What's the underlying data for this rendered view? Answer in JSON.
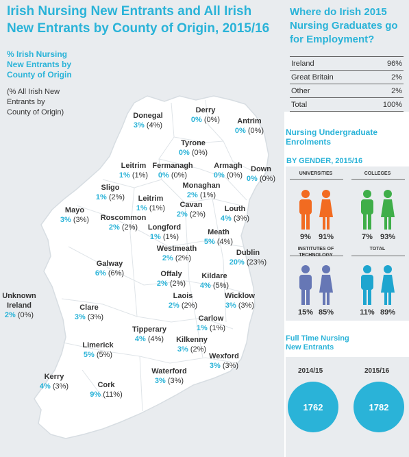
{
  "header": {
    "title": "Irish Nursing New Entrants and All Irish New Entrants by County of Origin, 2015/16",
    "subtitle": "% Irish Nursing\nNew Entrants by\nCounty of Origin",
    "note": "(% All Irish New\nEntrants by\nCounty of Origin)"
  },
  "counties": [
    {
      "name": "Donegal",
      "pct": "3%",
      "all": "(4%)"
    },
    {
      "name": "Derry",
      "pct": "0%",
      "all": "(0%)"
    },
    {
      "name": "Antrim",
      "pct": "0%",
      "all": "(0%)"
    },
    {
      "name": "Tyrone",
      "pct": "0%",
      "all": "(0%)"
    },
    {
      "name": "Leitrim",
      "pct": "1%",
      "all": "(1%)"
    },
    {
      "name": "Fermanagh",
      "pct": "0%",
      "all": "(0%)"
    },
    {
      "name": "Armagh",
      "pct": "0%",
      "all": "(0%)"
    },
    {
      "name": "Down",
      "pct": "0%",
      "all": "(0%)"
    },
    {
      "name": "Monaghan",
      "pct": "2%",
      "all": "(1%)"
    },
    {
      "name": "Sligo",
      "pct": "1%",
      "all": "(2%)"
    },
    {
      "name": "Leitrim",
      "pct": "1%",
      "all": "(1%)"
    },
    {
      "name": "Cavan",
      "pct": "2%",
      "all": "(2%)"
    },
    {
      "name": "Louth",
      "pct": "4%",
      "all": "(3%)"
    },
    {
      "name": "Mayo",
      "pct": "3%",
      "all": "(3%)"
    },
    {
      "name": "Roscommon",
      "pct": "2%",
      "all": "(2%)"
    },
    {
      "name": "Longford",
      "pct": "1%",
      "all": "(1%)"
    },
    {
      "name": "Meath",
      "pct": "5%",
      "all": "(4%)"
    },
    {
      "name": "Westmeath",
      "pct": "2%",
      "all": "(2%)"
    },
    {
      "name": "Dublin",
      "pct": "20%",
      "all": "(23%)"
    },
    {
      "name": "Galway",
      "pct": "6%",
      "all": "(6%)"
    },
    {
      "name": "Offaly",
      "pct": "2%",
      "all": "(2%)"
    },
    {
      "name": "Kildare",
      "pct": "4%",
      "all": "(5%)"
    },
    {
      "name": "Unknown\nIreland",
      "pct": "2%",
      "all": "(0%)"
    },
    {
      "name": "Clare",
      "pct": "3%",
      "all": "(3%)"
    },
    {
      "name": "Laois",
      "pct": "2%",
      "all": "(2%)"
    },
    {
      "name": "Wicklow",
      "pct": "3%",
      "all": "(3%)"
    },
    {
      "name": "Carlow",
      "pct": "1%",
      "all": "(1%)"
    },
    {
      "name": "Tipperary",
      "pct": "4%",
      "all": "(4%)"
    },
    {
      "name": "Limerick",
      "pct": "5%",
      "all": "(5%)"
    },
    {
      "name": "Kilkenny",
      "pct": "3%",
      "all": "(2%)"
    },
    {
      "name": "Wexford",
      "pct": "3%",
      "all": "(3%)"
    },
    {
      "name": "Waterford",
      "pct": "3%",
      "all": "(3%)"
    },
    {
      "name": "Kerry",
      "pct": "4%",
      "all": "(3%)"
    },
    {
      "name": "Cork",
      "pct": "9%",
      "all": "(11%)"
    }
  ],
  "graduates": {
    "title": "Where do Irish 2015 Nursing Graduates go for Employment?",
    "rows": [
      {
        "label": "Ireland",
        "value": "96%"
      },
      {
        "label": "Great Britain",
        "value": "2%"
      },
      {
        "label": "Other",
        "value": "2%"
      },
      {
        "label": "Total",
        "value": "100%"
      }
    ]
  },
  "enrolments": {
    "title": "Nursing Undergraduate\nEnrolments",
    "by_gender": "BY GENDER, 2015/16",
    "groups": [
      {
        "label": "UNIVERSITIES",
        "male": "9%",
        "female": "91%",
        "color": "#f26b21"
      },
      {
        "label": "COLLEGES",
        "male": "7%",
        "female": "93%",
        "color": "#3fae49"
      },
      {
        "label": "INSTITUTES OF\nTECHNOLOGY",
        "male": "15%",
        "female": "85%",
        "color": "#6677b5"
      },
      {
        "label": "TOTAL",
        "male": "11%",
        "female": "89%",
        "color": "#1ea5cf"
      }
    ]
  },
  "fulltime": {
    "title": "Full Time Nursing\nNew Entrants",
    "years": [
      {
        "label": "2014/15",
        "value": "1762"
      },
      {
        "label": "2015/16",
        "value": "1782"
      }
    ]
  }
}
